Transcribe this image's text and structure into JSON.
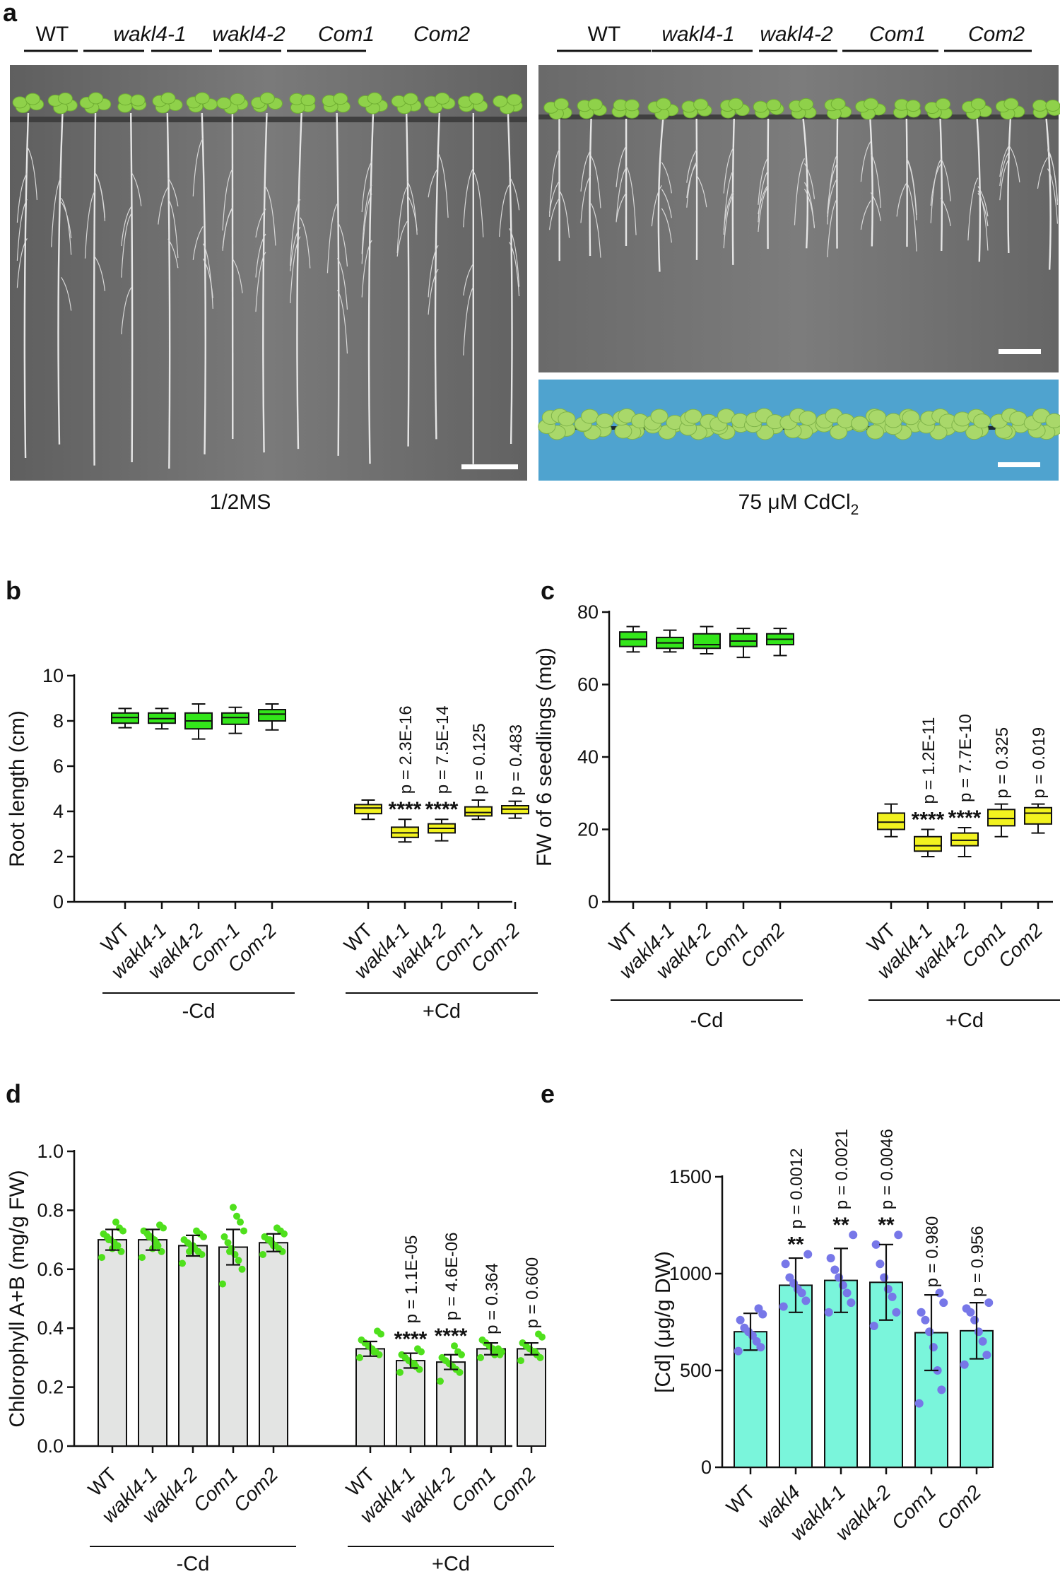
{
  "panel_a": {
    "label": "a",
    "left": {
      "genotypes": [
        {
          "text": "WT",
          "italic": false
        },
        {
          "text": "wakl4-1",
          "italic": true
        },
        {
          "text": "wakl4-2",
          "italic": true
        },
        {
          "text": "Com1",
          "italic": true
        },
        {
          "text": "Com2",
          "italic": true
        }
      ],
      "caption": "1/2MS"
    },
    "right": {
      "genotypes": [
        {
          "text": "WT",
          "italic": false
        },
        {
          "text": "wakl4-1",
          "italic": true
        },
        {
          "text": "wakl4-2",
          "italic": true
        },
        {
          "text": "Com1",
          "italic": true
        },
        {
          "text": "Com2",
          "italic": true
        }
      ],
      "caption": "75 μM CdCl",
      "caption_sub": "2"
    },
    "colors": {
      "agar": "#6f6f6f",
      "agar_dark": "#5a5a5a",
      "leaf": "#8fd14a",
      "root": "#e6e6e6",
      "blue_bg": "#4fa3cf"
    }
  },
  "chart_data": [
    {
      "id": "b",
      "label": "b",
      "type": "box",
      "ylabel": "Root length (cm)",
      "ylim": [
        0,
        10
      ],
      "yticks": [
        0,
        2,
        4,
        6,
        8,
        10
      ],
      "categories": [
        "WT",
        "wakl4-1",
        "wakl4-2",
        "Com-1",
        "Com-2",
        "WT",
        "wakl4-1",
        "wakl4-2",
        "Com-1",
        "Com-2"
      ],
      "cat_italic": [
        false,
        true,
        true,
        true,
        true,
        false,
        true,
        true,
        true,
        true
      ],
      "groups": [
        {
          "name": "-Cd",
          "from": 0,
          "to": 4
        },
        {
          "name": "+Cd",
          "from": 5,
          "to": 9
        }
      ],
      "colors": [
        "#33e61a",
        "#33e61a",
        "#33e61a",
        "#33e61a",
        "#33e61a",
        "#f2f21f",
        "#f2f21f",
        "#f2f21f",
        "#f2f21f",
        "#f2f21f"
      ],
      "boxes": [
        {
          "min": 7.7,
          "q1": 7.9,
          "median": 8.15,
          "q3": 8.35,
          "max": 8.55
        },
        {
          "min": 7.65,
          "q1": 7.9,
          "median": 8.1,
          "q3": 8.35,
          "max": 8.55
        },
        {
          "min": 7.2,
          "q1": 7.65,
          "median": 8.0,
          "q3": 8.35,
          "max": 8.75
        },
        {
          "min": 7.45,
          "q1": 7.85,
          "median": 8.15,
          "q3": 8.35,
          "max": 8.6
        },
        {
          "min": 7.6,
          "q1": 8.0,
          "median": 8.3,
          "q3": 8.5,
          "max": 8.75
        },
        {
          "min": 3.65,
          "q1": 3.9,
          "median": 4.15,
          "q3": 4.3,
          "max": 4.5
        },
        {
          "min": 2.65,
          "q1": 2.85,
          "median": 3.05,
          "q3": 3.3,
          "max": 3.65
        },
        {
          "min": 2.7,
          "q1": 3.05,
          "median": 3.25,
          "q3": 3.45,
          "max": 3.65
        },
        {
          "min": 3.65,
          "q1": 3.8,
          "median": 3.95,
          "q3": 4.2,
          "max": 4.5
        },
        {
          "min": 3.7,
          "q1": 3.9,
          "median": 4.1,
          "q3": 4.25,
          "max": 4.45
        }
      ],
      "annotations": [
        null,
        null,
        null,
        null,
        null,
        null,
        {
          "p": "p = 2.3E-16",
          "stars": "****"
        },
        {
          "p": "p = 7.5E-14",
          "stars": "****"
        },
        {
          "p": "p = 0.125",
          "stars": ""
        },
        {
          "p": "p = 0.483",
          "stars": ""
        }
      ]
    },
    {
      "id": "c",
      "label": "c",
      "type": "box",
      "ylabel": "FW of 6 seedlings (mg)",
      "ylim": [
        0,
        80
      ],
      "yticks": [
        0,
        20,
        40,
        60,
        80
      ],
      "categories": [
        "WT",
        "wakl4-1",
        "wakl4-2",
        "Com1",
        "Com2",
        "WT",
        "wakl4-1",
        "wakl4-2",
        "Com1",
        "Com2"
      ],
      "cat_italic": [
        false,
        true,
        true,
        true,
        true,
        false,
        true,
        true,
        true,
        true
      ],
      "groups": [
        {
          "name": "-Cd",
          "from": 0,
          "to": 4
        },
        {
          "name": "+Cd",
          "from": 5,
          "to": 9
        }
      ],
      "colors": [
        "#33e61a",
        "#33e61a",
        "#33e61a",
        "#33e61a",
        "#33e61a",
        "#f2f21f",
        "#f2f21f",
        "#f2f21f",
        "#f2f21f",
        "#f2f21f"
      ],
      "boxes": [
        {
          "min": 69,
          "q1": 70.5,
          "median": 72.5,
          "q3": 74.5,
          "max": 76
        },
        {
          "min": 69,
          "q1": 70,
          "median": 71.5,
          "q3": 73,
          "max": 75
        },
        {
          "min": 68.5,
          "q1": 70,
          "median": 71,
          "q3": 74,
          "max": 76
        },
        {
          "min": 67.5,
          "q1": 70.5,
          "median": 72,
          "q3": 74,
          "max": 75.5
        },
        {
          "min": 68,
          "q1": 71,
          "median": 72.5,
          "q3": 74,
          "max": 75.5
        },
        {
          "min": 18,
          "q1": 20,
          "median": 22,
          "q3": 24.5,
          "max": 27
        },
        {
          "min": 12.5,
          "q1": 14,
          "median": 15.5,
          "q3": 18,
          "max": 20
        },
        {
          "min": 12.5,
          "q1": 15.5,
          "median": 17,
          "q3": 19,
          "max": 20.5
        },
        {
          "min": 18,
          "q1": 21,
          "median": 23,
          "q3": 25.5,
          "max": 27
        },
        {
          "min": 19,
          "q1": 21.5,
          "median": 24.5,
          "q3": 26,
          "max": 27
        }
      ],
      "annotations": [
        null,
        null,
        null,
        null,
        null,
        null,
        {
          "p": "p = 1.2E-11",
          "stars": "****"
        },
        {
          "p": "p = 7.7E-10",
          "stars": "****"
        },
        {
          "p": "p = 0.325",
          "stars": ""
        },
        {
          "p": "p = 0.019",
          "stars": ""
        }
      ]
    },
    {
      "id": "d",
      "label": "d",
      "type": "bar",
      "ylabel": "Chlorophyll A+B (mg/g FW)",
      "ylim": [
        0,
        1.0
      ],
      "yticks": [
        "0.0",
        "0.2",
        "0.4",
        "0.6",
        "0.8",
        "1.0"
      ],
      "categories": [
        "WT",
        "wakl4-1",
        "wakl4-2",
        "Com1",
        "Com2",
        "WT",
        "wakl4-1",
        "wakl4-2",
        "Com1",
        "Com2"
      ],
      "cat_italic": [
        false,
        true,
        true,
        true,
        true,
        false,
        true,
        true,
        true,
        true
      ],
      "groups": [
        {
          "name": "-Cd",
          "from": 0,
          "to": 4
        },
        {
          "name": "+Cd",
          "from": 5,
          "to": 9
        }
      ],
      "bar_color": "#e3e4e3",
      "dot_color": "#4fe01c",
      "values": [
        0.7,
        0.7,
        0.68,
        0.675,
        0.69,
        0.33,
        0.29,
        0.285,
        0.33,
        0.33
      ],
      "errors": [
        0.035,
        0.035,
        0.035,
        0.06,
        0.03,
        0.025,
        0.025,
        0.025,
        0.02,
        0.02
      ],
      "points": [
        [
          0.64,
          0.66,
          0.68,
          0.69,
          0.7,
          0.71,
          0.72,
          0.73,
          0.74,
          0.76,
          0.67,
          0.7
        ],
        [
          0.64,
          0.66,
          0.68,
          0.7,
          0.71,
          0.72,
          0.73,
          0.74,
          0.75,
          0.69,
          0.67,
          0.71
        ],
        [
          0.62,
          0.65,
          0.66,
          0.67,
          0.68,
          0.69,
          0.7,
          0.71,
          0.72,
          0.73,
          0.68,
          0.66
        ],
        [
          0.55,
          0.6,
          0.63,
          0.65,
          0.67,
          0.69,
          0.71,
          0.73,
          0.76,
          0.78,
          0.81,
          0.66
        ],
        [
          0.65,
          0.66,
          0.67,
          0.68,
          0.69,
          0.7,
          0.71,
          0.72,
          0.73,
          0.74,
          0.68,
          0.7
        ],
        [
          0.3,
          0.31,
          0.32,
          0.33,
          0.34,
          0.35,
          0.36,
          0.38,
          0.39,
          0.32
        ],
        [
          0.25,
          0.26,
          0.27,
          0.28,
          0.29,
          0.3,
          0.31,
          0.32,
          0.33,
          0.28
        ],
        [
          0.22,
          0.25,
          0.26,
          0.27,
          0.28,
          0.29,
          0.3,
          0.31,
          0.32,
          0.34
        ],
        [
          0.3,
          0.31,
          0.32,
          0.33,
          0.34,
          0.35,
          0.36,
          0.32,
          0.33,
          0.31
        ],
        [
          0.29,
          0.3,
          0.31,
          0.32,
          0.33,
          0.34,
          0.35,
          0.37,
          0.38,
          0.32
        ]
      ],
      "annotations": [
        null,
        null,
        null,
        null,
        null,
        null,
        {
          "p": "p = 1.1E-05",
          "stars": "****"
        },
        {
          "p": "p = 4.6E-06",
          "stars": "****"
        },
        {
          "p": "p = 0.364",
          "stars": ""
        },
        {
          "p": "p = 0.600",
          "stars": ""
        }
      ]
    },
    {
      "id": "e",
      "label": "e",
      "type": "bar",
      "ylabel": "[Cd] (μg/g DW)",
      "ylim": [
        0,
        1500
      ],
      "yticks": [
        "0",
        "500",
        "1000",
        "1500"
      ],
      "categories": [
        "WT",
        "wakl4",
        "wakl4-1",
        "wakl4-2",
        "Com1",
        "Com2"
      ],
      "cat_italic": [
        false,
        true,
        true,
        true,
        true,
        true
      ],
      "groups": [],
      "bar_color": "#7af5db",
      "dot_color": "#7777e8",
      "values": [
        700,
        940,
        965,
        955,
        695,
        705
      ],
      "errors": [
        95,
        140,
        165,
        195,
        195,
        145
      ],
      "points": [
        [
          600,
          620,
          650,
          680,
          700,
          720,
          760,
          790,
          820
        ],
        [
          830,
          860,
          900,
          920,
          950,
          980,
          1050,
          1100
        ],
        [
          800,
          850,
          900,
          940,
          980,
          1020,
          1080,
          1200
        ],
        [
          730,
          800,
          880,
          920,
          980,
          1050,
          1150,
          1200
        ],
        [
          330,
          400,
          500,
          620,
          700,
          760,
          800,
          850,
          900
        ],
        [
          530,
          580,
          650,
          700,
          760,
          800,
          820,
          850
        ]
      ],
      "annotations": [
        null,
        {
          "p": "p = 0.0012",
          "stars": "**"
        },
        {
          "p": "p = 0.0021",
          "stars": "**"
        },
        {
          "p": "p = 0.0046",
          "stars": "**"
        },
        {
          "p": "p = 0.980",
          "stars": ""
        },
        {
          "p": "p = 0.956",
          "stars": ""
        }
      ]
    }
  ]
}
